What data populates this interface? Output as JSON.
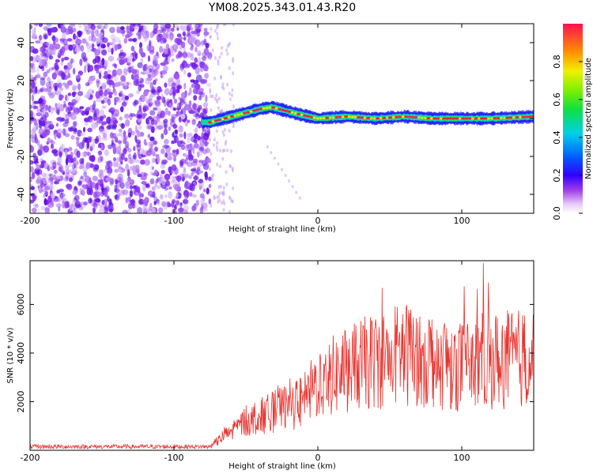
{
  "title": "YM08.2025.343.01.43.R20",
  "chart_data": [
    {
      "type": "heatmap",
      "name": "spectrogram",
      "xlabel": "Height of straight line (km)",
      "ylabel": "Frequency (Hz)",
      "xlim": [
        -200,
        150
      ],
      "ylim": [
        -50,
        50
      ],
      "xticks": [
        -200,
        -100,
        0,
        100
      ],
      "xtick_labels": [
        "-200",
        "-100",
        "0",
        "100"
      ],
      "yticks": [
        -40,
        -20,
        0,
        20,
        40
      ],
      "ytick_labels": [
        "-40",
        "-20",
        "0",
        "20",
        "40"
      ],
      "noise_region_x": [
        -200,
        -75
      ],
      "ridge_points": [
        {
          "x": -80,
          "y": -2
        },
        {
          "x": -75,
          "y": -2
        },
        {
          "x": -70,
          "y": -1
        },
        {
          "x": -60,
          "y": 1
        },
        {
          "x": -50,
          "y": 3
        },
        {
          "x": -40,
          "y": 5
        },
        {
          "x": -32,
          "y": 6
        },
        {
          "x": -22,
          "y": 4
        },
        {
          "x": -12,
          "y": 2
        },
        {
          "x": 0,
          "y": 0
        },
        {
          "x": 20,
          "y": 1
        },
        {
          "x": 40,
          "y": 0
        },
        {
          "x": 60,
          "y": 1
        },
        {
          "x": 80,
          "y": 0
        },
        {
          "x": 100,
          "y": 0
        },
        {
          "x": 120,
          "y": 0
        },
        {
          "x": 150,
          "y": 1
        }
      ],
      "colorbar": {
        "label": "Normalized spectral amplitude",
        "range": [
          0,
          1
        ],
        "ticks": [
          0.0,
          0.2,
          0.4,
          0.6,
          0.8
        ],
        "tick_labels": [
          "0.0",
          "0.2",
          "0.4",
          "0.6",
          "0.8"
        ]
      }
    },
    {
      "type": "line",
      "name": "snr",
      "xlabel": "Height of straight line (km)",
      "ylabel": "SNR (10 * v/v)",
      "xlim": [
        -200,
        150
      ],
      "ylim": [
        0,
        7800
      ],
      "xticks": [
        -200,
        -100,
        0,
        100
      ],
      "xtick_labels": [
        "-200",
        "-100",
        "0",
        "100"
      ],
      "yticks": [
        2000,
        4000,
        6000
      ],
      "ytick_labels": [
        "2000",
        "4000",
        "6000"
      ],
      "line_color": "#e8332e",
      "envelope": [
        {
          "x": -200,
          "y": 150
        },
        {
          "x": -75,
          "y": 150
        },
        {
          "x": -60,
          "y": 800
        },
        {
          "x": -50,
          "y": 1200
        },
        {
          "x": -30,
          "y": 1600
        },
        {
          "x": -10,
          "y": 2000
        },
        {
          "x": 0,
          "y": 2800
        },
        {
          "x": 20,
          "y": 3300
        },
        {
          "x": 40,
          "y": 3700
        },
        {
          "x": 60,
          "y": 4000
        },
        {
          "x": 80,
          "y": 3800
        },
        {
          "x": 100,
          "y": 3500
        },
        {
          "x": 120,
          "y": 3700
        },
        {
          "x": 150,
          "y": 3800
        }
      ],
      "peak": {
        "x": 115,
        "y": 7700
      }
    }
  ]
}
